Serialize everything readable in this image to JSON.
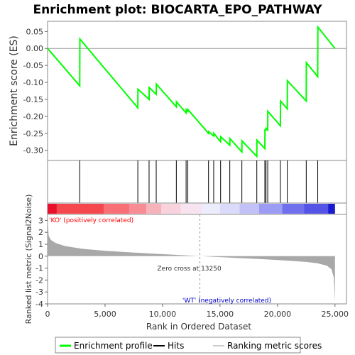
{
  "chart_data": {
    "type": "line",
    "title": "Enrichment plot: BIOCARTA_EPO_PATHWAY",
    "es_panel": {
      "ylabel": "Enrichment score (ES)",
      "ylim": [
        -0.33,
        0.08
      ],
      "yticks": [
        "0.05",
        "0.00",
        "-0.05",
        "-0.10",
        "-0.15",
        "-0.20",
        "-0.25",
        "-0.30"
      ],
      "ytick_values": [
        0.05,
        0.0,
        -0.05,
        -0.1,
        -0.15,
        -0.2,
        -0.25,
        -0.3
      ],
      "series_color": "#00ff00",
      "points": [
        [
          0,
          0.0
        ],
        [
          2800,
          -0.11
        ],
        [
          2810,
          0.028
        ],
        [
          7850,
          -0.175
        ],
        [
          7860,
          -0.12
        ],
        [
          8830,
          -0.15
        ],
        [
          8840,
          -0.115
        ],
        [
          9450,
          -0.135
        ],
        [
          9460,
          -0.105
        ],
        [
          11200,
          -0.172
        ],
        [
          11210,
          -0.157
        ],
        [
          12050,
          -0.19
        ],
        [
          12060,
          -0.18
        ],
        [
          12200,
          -0.185
        ],
        [
          12210,
          -0.18
        ],
        [
          14000,
          -0.25
        ],
        [
          14010,
          -0.245
        ],
        [
          14450,
          -0.258
        ],
        [
          14460,
          -0.25
        ],
        [
          15050,
          -0.275
        ],
        [
          15060,
          -0.26
        ],
        [
          15850,
          -0.285
        ],
        [
          15860,
          -0.265
        ],
        [
          16900,
          -0.305
        ],
        [
          16910,
          -0.272
        ],
        [
          18200,
          -0.318
        ],
        [
          18210,
          -0.27
        ],
        [
          18900,
          -0.295
        ],
        [
          18910,
          -0.24
        ],
        [
          19000,
          -0.24
        ],
        [
          19010,
          -0.235
        ],
        [
          19150,
          -0.24
        ],
        [
          19160,
          -0.185
        ],
        [
          20250,
          -0.228
        ],
        [
          20260,
          -0.155
        ],
        [
          20850,
          -0.178
        ],
        [
          20860,
          -0.095
        ],
        [
          22500,
          -0.155
        ],
        [
          22510,
          -0.042
        ],
        [
          23500,
          -0.083
        ],
        [
          23510,
          0.063
        ],
        [
          25000,
          0.0
        ]
      ]
    },
    "hits": [
      2800,
      7850,
      8830,
      9450,
      11200,
      12050,
      12200,
      14000,
      14450,
      15050,
      15850,
      16900,
      18200,
      18900,
      19000,
      19150,
      20250,
      20850,
      22500,
      23500
    ],
    "color_bar": {
      "segments": [
        {
          "from": 0,
          "to": 800,
          "color": "#e8102a"
        },
        {
          "from": 800,
          "to": 4900,
          "color": "#f4484e"
        },
        {
          "from": 4900,
          "to": 7100,
          "color": "#f86f76"
        },
        {
          "from": 7100,
          "to": 8600,
          "color": "#f88c94"
        },
        {
          "from": 8600,
          "to": 9900,
          "color": "#f8b2bb"
        },
        {
          "from": 9900,
          "to": 11600,
          "color": "#f8d2dc"
        },
        {
          "from": 11600,
          "to": 13400,
          "color": "#f8e4f0"
        },
        {
          "from": 13400,
          "to": 15000,
          "color": "#ececfc"
        },
        {
          "from": 15000,
          "to": 16700,
          "color": "#dadafa"
        },
        {
          "from": 16700,
          "to": 18400,
          "color": "#c2c2f8"
        },
        {
          "from": 18400,
          "to": 20400,
          "color": "#9c9cf4"
        },
        {
          "from": 20400,
          "to": 22300,
          "color": "#7070ee"
        },
        {
          "from": 22300,
          "to": 24400,
          "color": "#5454e6"
        },
        {
          "from": 24400,
          "to": 25000,
          "color": "#1a1ad0"
        }
      ]
    },
    "metric_panel": {
      "ylabel": "Ranked list metric (Signal2Noise)",
      "xlabel": "Rank in Ordered Dataset",
      "ylim": [
        -4,
        3.5
      ],
      "yticks": [
        "3",
        "2",
        "1",
        "0",
        "-1",
        "-2",
        "-3",
        "-4"
      ],
      "ytick_values": [
        3,
        2,
        1,
        0,
        -1,
        -2,
        -3,
        -4
      ],
      "xlim": [
        0,
        26000
      ],
      "xticks": [
        "0",
        "5,000",
        "10,000",
        "15,000",
        "20,000",
        "25,000"
      ],
      "xtick_values": [
        0,
        5000,
        10000,
        15000,
        20000,
        25000
      ],
      "zero_cross_label": "Zero cross at 13250",
      "zero_cross": 13250,
      "pos_label": "'KO' (positively correlated)",
      "neg_label": "'WT' (negatively correlated)",
      "pos_color": "#ff0000",
      "neg_color": "#0000cc",
      "fill_color": "#a8a8a8",
      "curve": [
        [
          0,
          3.1
        ],
        [
          100,
          1.7
        ],
        [
          300,
          1.35
        ],
        [
          700,
          1.1
        ],
        [
          1500,
          0.85
        ],
        [
          3000,
          0.62
        ],
        [
          5000,
          0.45
        ],
        [
          7000,
          0.33
        ],
        [
          9000,
          0.22
        ],
        [
          11000,
          0.12
        ],
        [
          13250,
          0.0
        ],
        [
          15000,
          -0.08
        ],
        [
          17000,
          -0.17
        ],
        [
          19000,
          -0.27
        ],
        [
          21000,
          -0.38
        ],
        [
          22500,
          -0.48
        ],
        [
          23500,
          -0.6
        ],
        [
          24300,
          -0.8
        ],
        [
          24700,
          -1.1
        ],
        [
          24900,
          -1.8
        ],
        [
          25000,
          -3.8
        ]
      ]
    },
    "legend": {
      "items": [
        {
          "label": "Enrichment profile",
          "color": "#00ff00"
        },
        {
          "label": "Hits",
          "color": "#000000"
        },
        {
          "label": "Ranking metric scores",
          "color": "#cccccc"
        }
      ]
    }
  }
}
